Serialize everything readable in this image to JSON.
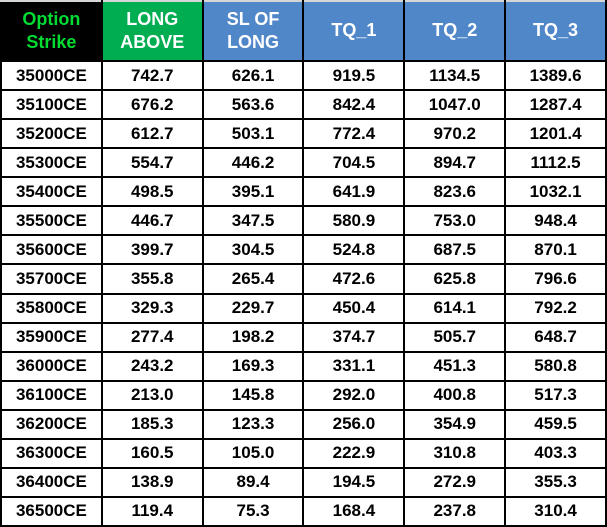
{
  "table": {
    "headers": [
      {
        "label": "Option\nStrike"
      },
      {
        "label": "LONG\nABOVE"
      },
      {
        "label": "SL OF\nLONG"
      },
      {
        "label": "TQ_1"
      },
      {
        "label": "TQ_2"
      },
      {
        "label": "TQ_3"
      }
    ],
    "rows": [
      [
        "35000CE",
        "742.7",
        "626.1",
        "919.5",
        "1134.5",
        "1389.6"
      ],
      [
        "35100CE",
        "676.2",
        "563.6",
        "842.4",
        "1047.0",
        "1287.4"
      ],
      [
        "35200CE",
        "612.7",
        "503.1",
        "772.4",
        "970.2",
        "1201.4"
      ],
      [
        "35300CE",
        "554.7",
        "446.2",
        "704.5",
        "894.7",
        "1112.5"
      ],
      [
        "35400CE",
        "498.5",
        "395.1",
        "641.9",
        "823.6",
        "1032.1"
      ],
      [
        "35500CE",
        "446.7",
        "347.5",
        "580.9",
        "753.0",
        "948.4"
      ],
      [
        "35600CE",
        "399.7",
        "304.5",
        "524.8",
        "687.5",
        "870.1"
      ],
      [
        "35700CE",
        "355.8",
        "265.4",
        "472.6",
        "625.8",
        "796.6"
      ],
      [
        "35800CE",
        "329.3",
        "229.7",
        "450.4",
        "614.1",
        "792.2"
      ],
      [
        "35900CE",
        "277.4",
        "198.2",
        "374.7",
        "505.7",
        "648.7"
      ],
      [
        "36000CE",
        "243.2",
        "169.3",
        "331.1",
        "451.3",
        "580.8"
      ],
      [
        "36100CE",
        "213.0",
        "145.8",
        "292.0",
        "400.8",
        "517.3"
      ],
      [
        "36200CE",
        "185.3",
        "123.3",
        "256.0",
        "354.9",
        "459.5"
      ],
      [
        "36300CE",
        "160.5",
        "105.0",
        "222.9",
        "310.8",
        "403.3"
      ],
      [
        "36400CE",
        "138.9",
        "89.4",
        "194.5",
        "272.9",
        "355.3"
      ],
      [
        "36500CE",
        "119.4",
        "75.3",
        "168.4",
        "237.8",
        "310.4"
      ]
    ]
  },
  "colors": {
    "header_strike_bg": "#000000",
    "header_strike_text": "#00dc32",
    "header_green_bg": "#00ad50",
    "header_blue_bg": "#5087c8",
    "header_text": "#ffffff",
    "body_text": "#000000",
    "grid": "#000000"
  }
}
